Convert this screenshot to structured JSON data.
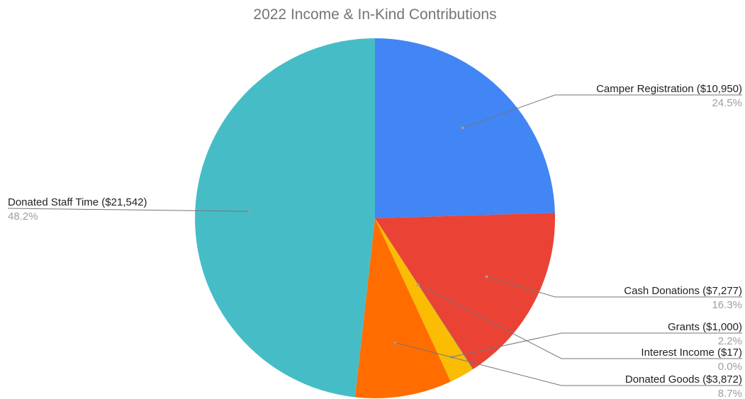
{
  "chart_data": {
    "type": "pie",
    "title": "2022 Income & In-Kind Contributions",
    "start": "12 o'clock",
    "direction": "clockwise",
    "slices": [
      {
        "label": "Camper Registration ($10,950)",
        "value": 10950,
        "percent_label": "24.5%",
        "color": "#4285f4"
      },
      {
        "label": "Cash Donations ($7,277)",
        "value": 7277,
        "percent_label": "16.3%",
        "color": "#ea4335"
      },
      {
        "label": "Interest Income ($17)",
        "value": 17,
        "percent_label": "0.0%",
        "color": "#34a853"
      },
      {
        "label": "Grants ($1,000)",
        "value": 1000,
        "percent_label": "2.2%",
        "color": "#fbbc04"
      },
      {
        "label": "Donated Goods ($3,872)",
        "value": 3872,
        "percent_label": "8.7%",
        "color": "#ff6d01"
      },
      {
        "label": "Donated Staff Time ($21,542)",
        "value": 21542,
        "percent_label": "48.2%",
        "color": "#46bdc6"
      }
    ]
  }
}
